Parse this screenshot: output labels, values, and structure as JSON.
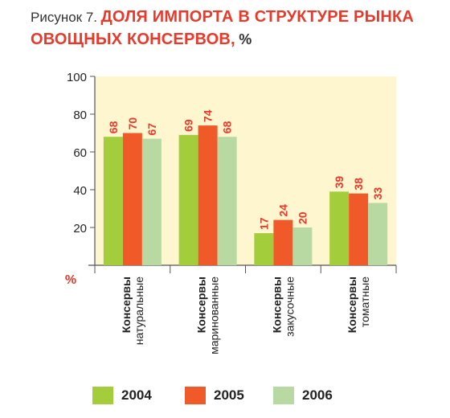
{
  "figure": {
    "prefix": "Рисунок 7.",
    "title": "ДОЛЯ ИМПОРТА В СТРУКТУРЕ РЫНКА ОВОЩНЫХ КОНСЕРВОВ,",
    "unit": "%"
  },
  "chart_data": {
    "type": "bar",
    "title": "ДОЛЯ ИМПОРТА В СТРУКТУРЕ РЫНКА ОВОЩНЫХ КОНСЕРВОВ, %",
    "xlabel": "",
    "ylabel": "%",
    "ylim": [
      0,
      100
    ],
    "yticks": [
      20,
      40,
      60,
      80,
      100
    ],
    "grid": false,
    "legend_position": "bottom",
    "categories": [
      [
        "Консервы",
        "натуральные"
      ],
      [
        "Консервы",
        "маринованные"
      ],
      [
        "Консервы",
        "закусочные"
      ],
      [
        "Консервы",
        "томатные"
      ]
    ],
    "series": [
      {
        "name": "2004",
        "color": "#a3cd3b",
        "values": [
          68,
          69,
          17,
          39
        ]
      },
      {
        "name": "2005",
        "color": "#f05a28",
        "values": [
          70,
          74,
          24,
          38
        ]
      },
      {
        "name": "2006",
        "color": "#b9d9a2",
        "values": [
          67,
          68,
          20,
          33
        ]
      }
    ],
    "plot_background": "#fdf6cf",
    "label_color": "#e8392a"
  }
}
